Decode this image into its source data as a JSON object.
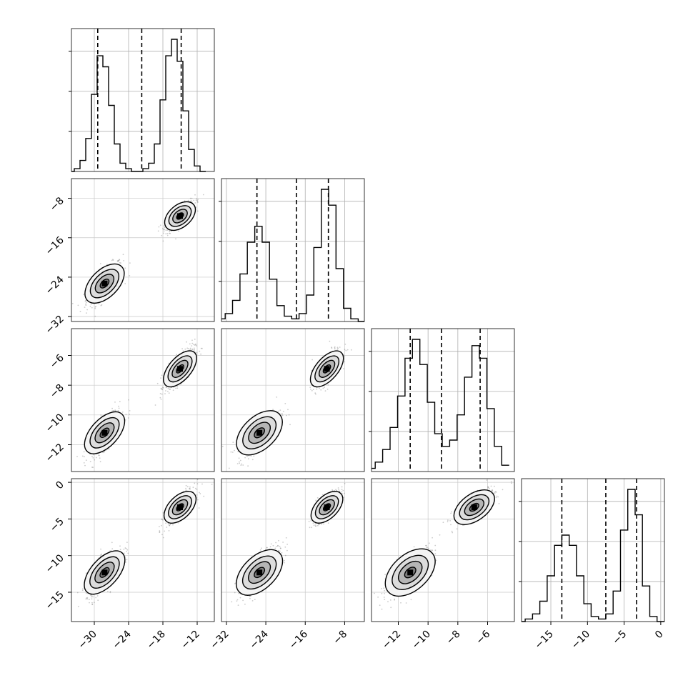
{
  "chart_data": {
    "type": "corner",
    "parameters": [
      {
        "range": [
          -34,
          -9
        ],
        "ticks": [
          -30,
          -24,
          -18,
          -12
        ],
        "quantiles": [
          -29.4,
          -21.7,
          -14.8
        ]
      },
      {
        "range": [
          -33,
          -4
        ],
        "ticks": [
          -32,
          -24,
          -16,
          -8
        ],
        "quantiles": [
          -25.8,
          -17.8,
          -11.3
        ]
      },
      {
        "range": [
          -13.8,
          -4.2
        ],
        "ticks": [
          -12,
          -10,
          -8,
          -6
        ],
        "quantiles": [
          -11.2,
          -9.1,
          -6.5
        ]
      },
      {
        "range": [
          -19,
          0.5
        ],
        "ticks": [
          -15,
          -10,
          -5,
          0
        ],
        "quantiles": [
          -13.5,
          -7.5,
          -3.3
        ]
      }
    ],
    "grid": true,
    "marginals": [
      [
        {
          "x": -34,
          "count": 0
        },
        {
          "x": -33,
          "count": 1
        },
        {
          "x": -32,
          "count": 4
        },
        {
          "x": -31,
          "count": 12
        },
        {
          "x": -30,
          "count": 28
        },
        {
          "x": -29,
          "count": 42
        },
        {
          "x": -28,
          "count": 38
        },
        {
          "x": -27,
          "count": 24
        },
        {
          "x": -26,
          "count": 10
        },
        {
          "x": -25,
          "count": 3
        },
        {
          "x": -24,
          "count": 1
        },
        {
          "x": -23,
          "count": 0
        },
        {
          "x": -22,
          "count": 0
        },
        {
          "x": -21,
          "count": 1
        },
        {
          "x": -20,
          "count": 3
        },
        {
          "x": -19,
          "count": 10
        },
        {
          "x": -18,
          "count": 26
        },
        {
          "x": -17,
          "count": 42
        },
        {
          "x": -16,
          "count": 48
        },
        {
          "x": -15,
          "count": 40
        },
        {
          "x": -14,
          "count": 22
        },
        {
          "x": -13,
          "count": 8
        },
        {
          "x": -12,
          "count": 2
        },
        {
          "x": -11,
          "count": 0
        }
      ],
      [
        {
          "x": -33,
          "count": 1
        },
        {
          "x": -31.5,
          "count": 3
        },
        {
          "x": -30,
          "count": 8
        },
        {
          "x": -28.5,
          "count": 18
        },
        {
          "x": -27,
          "count": 30
        },
        {
          "x": -25.5,
          "count": 36
        },
        {
          "x": -24,
          "count": 30
        },
        {
          "x": -22.5,
          "count": 16
        },
        {
          "x": -21,
          "count": 6
        },
        {
          "x": -19.5,
          "count": 2
        },
        {
          "x": -18,
          "count": 1
        },
        {
          "x": -16.5,
          "count": 3
        },
        {
          "x": -15,
          "count": 10
        },
        {
          "x": -13.5,
          "count": 28
        },
        {
          "x": -12,
          "count": 50
        },
        {
          "x": -10.5,
          "count": 44
        },
        {
          "x": -9,
          "count": 20
        },
        {
          "x": -7.5,
          "count": 5
        },
        {
          "x": -6,
          "count": 1
        },
        {
          "x": -4.5,
          "count": 0
        }
      ],
      [
        {
          "x": -13.8,
          "count": 1
        },
        {
          "x": -13.3,
          "count": 3
        },
        {
          "x": -12.8,
          "count": 7
        },
        {
          "x": -12.3,
          "count": 14
        },
        {
          "x": -11.8,
          "count": 24
        },
        {
          "x": -11.3,
          "count": 36
        },
        {
          "x": -10.8,
          "count": 42
        },
        {
          "x": -10.3,
          "count": 34
        },
        {
          "x": -9.8,
          "count": 22
        },
        {
          "x": -9.3,
          "count": 12
        },
        {
          "x": -8.8,
          "count": 8
        },
        {
          "x": -8.3,
          "count": 10
        },
        {
          "x": -7.8,
          "count": 18
        },
        {
          "x": -7.3,
          "count": 30
        },
        {
          "x": -6.8,
          "count": 40
        },
        {
          "x": -6.3,
          "count": 36
        },
        {
          "x": -5.8,
          "count": 20
        },
        {
          "x": -5.3,
          "count": 8
        },
        {
          "x": -4.8,
          "count": 2
        }
      ],
      [
        {
          "x": -19,
          "count": 0
        },
        {
          "x": -18,
          "count": 1
        },
        {
          "x": -17,
          "count": 3
        },
        {
          "x": -16,
          "count": 8
        },
        {
          "x": -15,
          "count": 18
        },
        {
          "x": -14,
          "count": 30
        },
        {
          "x": -13,
          "count": 34
        },
        {
          "x": -12,
          "count": 30
        },
        {
          "x": -11,
          "count": 18
        },
        {
          "x": -10,
          "count": 7
        },
        {
          "x": -9,
          "count": 2
        },
        {
          "x": -8,
          "count": 1
        },
        {
          "x": -7,
          "count": 3
        },
        {
          "x": -6,
          "count": 12
        },
        {
          "x": -5,
          "count": 36
        },
        {
          "x": -4,
          "count": 52
        },
        {
          "x": -3,
          "count": 42
        },
        {
          "x": -2,
          "count": 14
        },
        {
          "x": -1,
          "count": 2
        },
        {
          "x": 0,
          "count": 0
        }
      ]
    ],
    "clusters": [
      {
        "means": [
          -28.2,
          -25.3,
          -11.2,
          -12.3
        ],
        "sds": [
          1.6,
          2.2,
          0.8,
          1.7
        ]
      },
      {
        "means": [
          -15.0,
          -11.6,
          -6.9,
          -3.4
        ],
        "sds": [
          1.3,
          1.5,
          0.7,
          1.2
        ]
      }
    ]
  }
}
